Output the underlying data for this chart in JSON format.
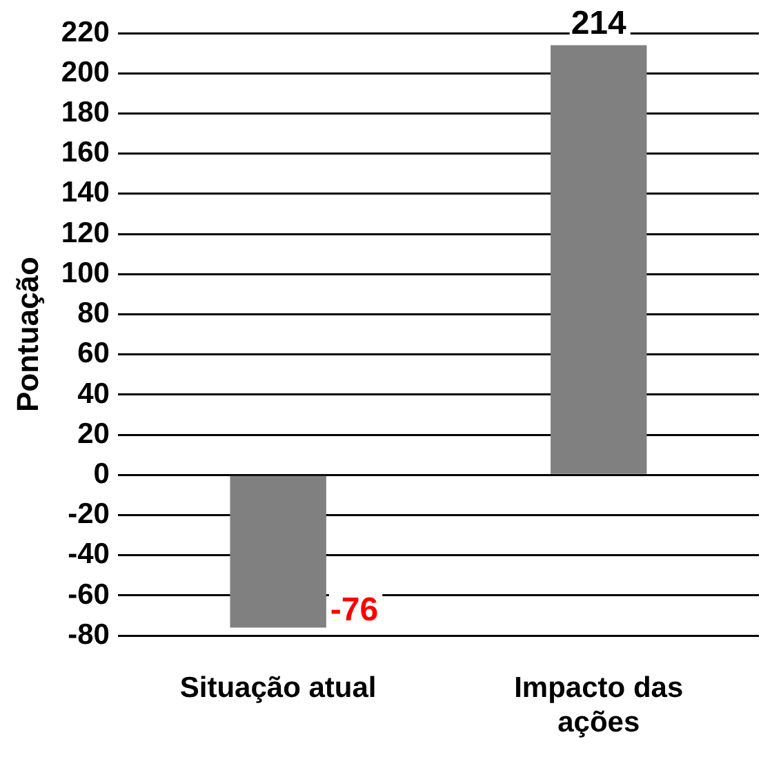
{
  "chart_data": {
    "type": "bar",
    "ylabel": "Pontuação",
    "categories": [
      "Situação atual",
      "Impacto das ações"
    ],
    "values": [
      -76,
      214
    ],
    "color": "#808080",
    "ylim": [
      -80,
      220
    ],
    "yticks": [
      -80,
      -60,
      -40,
      -20,
      0,
      20,
      40,
      60,
      80,
      100,
      120,
      140,
      160,
      180,
      200,
      220
    ],
    "grid": "y",
    "data_labels": true,
    "legend": false
  }
}
